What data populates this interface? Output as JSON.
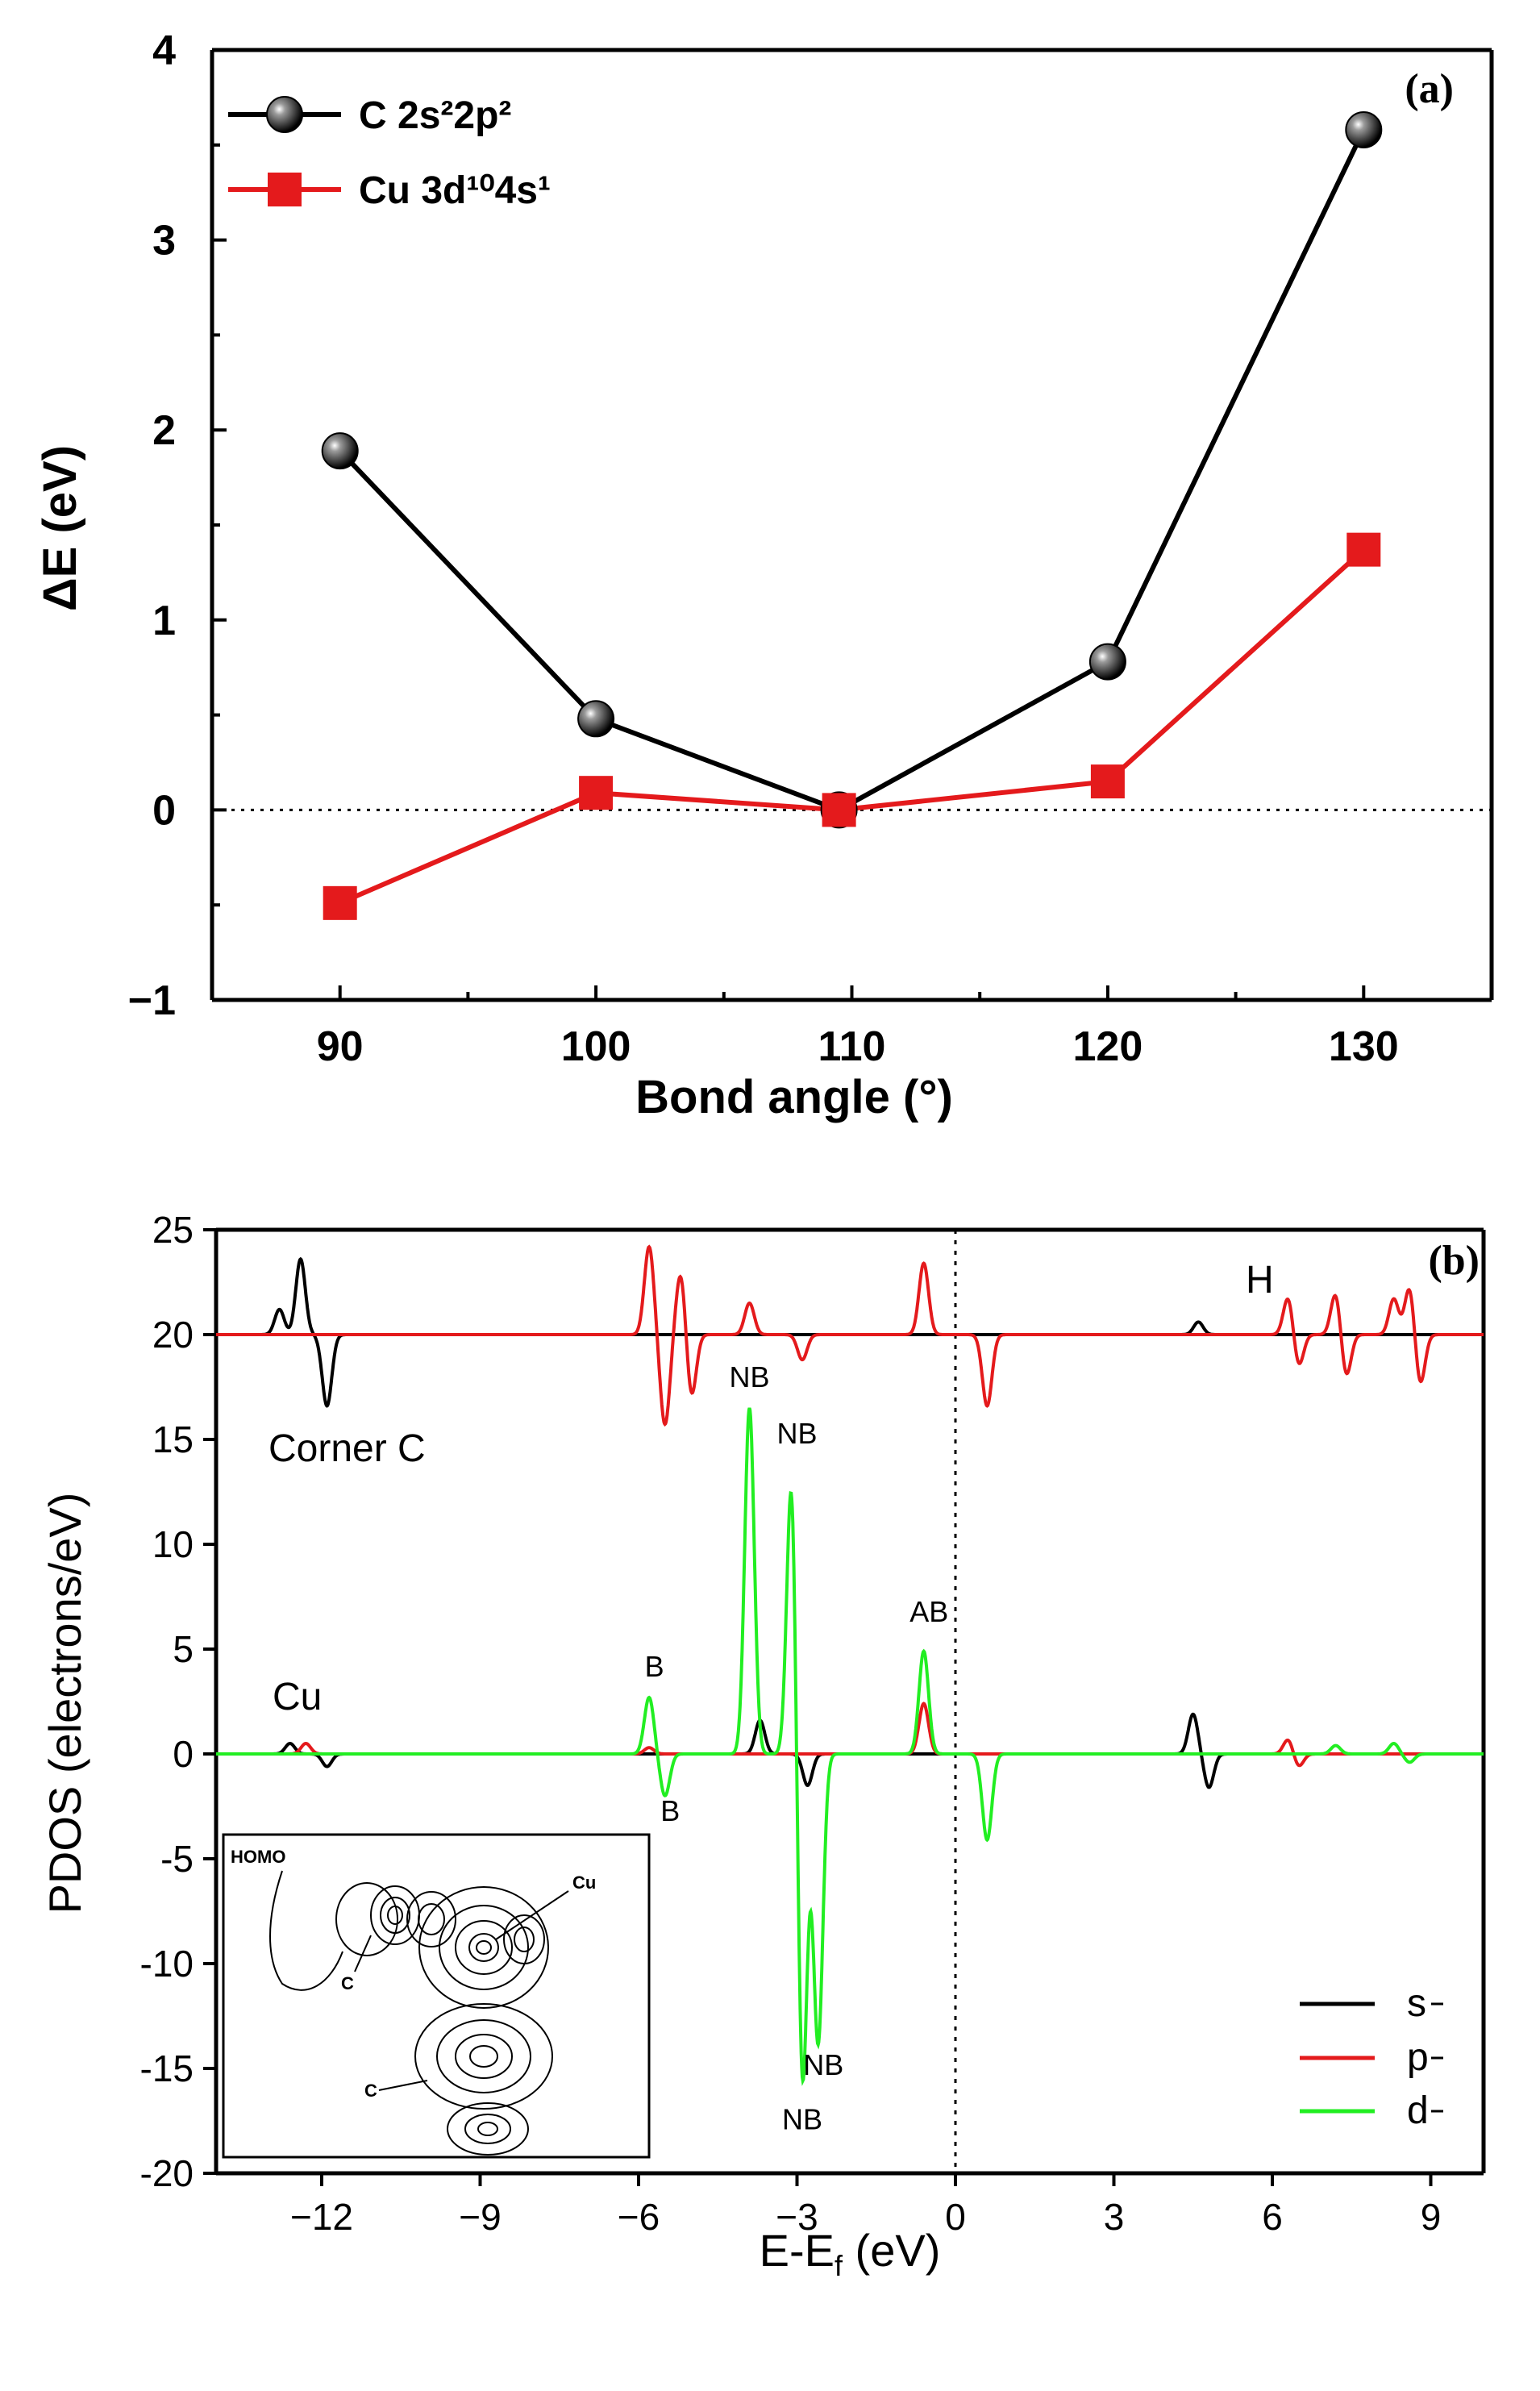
{
  "chart_data": [
    {
      "panel": "(a)",
      "type": "line",
      "xlabel": "Bond angle (°)",
      "ylabel": "ΔE (eV)",
      "xlim": [
        85,
        135
      ],
      "ylim": [
        -1,
        4
      ],
      "xticks": [
        90,
        100,
        110,
        120,
        130
      ],
      "xtick_labels": [
        "90",
        "100",
        "110",
        "120",
        "130"
      ],
      "yticks": [
        -1,
        0,
        1,
        2,
        3,
        4
      ],
      "ytick_labels": [
        "−1",
        "0",
        "1",
        "2",
        "3",
        "4"
      ],
      "reference_line": {
        "y": 0,
        "style": "dotted"
      },
      "legend_position": "top-left",
      "series": [
        {
          "name": "C",
          "config": "2s²2p²",
          "color": "#000000",
          "marker": "sphere",
          "x": [
            90,
            100,
            109.5,
            120,
            130
          ],
          "values": [
            1.89,
            0.48,
            0.0,
            0.78,
            3.58
          ]
        },
        {
          "name": "Cu",
          "config": "3d¹⁰4s¹",
          "color": "#e41a1c",
          "marker": "square",
          "x": [
            90,
            100,
            109.5,
            120,
            130
          ],
          "values": [
            -0.49,
            0.09,
            0.0,
            0.15,
            1.37
          ]
        }
      ]
    },
    {
      "panel": "(b)",
      "type": "line",
      "xlabel": "E-E",
      "xlabel_sub": "f",
      "xlabel_unit": " (eV)",
      "ylabel": "PDOS (electrons/eV)",
      "xlim": [
        -14,
        10
      ],
      "ylim": [
        -20,
        25
      ],
      "xticks": [
        -12,
        -9,
        -6,
        -3,
        0,
        3,
        6,
        9
      ],
      "xtick_labels": [
        "−12",
        "−9",
        "−6",
        "−3",
        "0",
        "3",
        "6",
        "9"
      ],
      "yticks": [
        -20,
        -15,
        -10,
        -5,
        0,
        5,
        10,
        15,
        20,
        25
      ],
      "ytick_labels": [
        "-20",
        "-15",
        "-10",
        "-5",
        "0",
        "5",
        "10",
        "15",
        "20",
        "25"
      ],
      "fermi_line": {
        "x": 0,
        "style": "dotted"
      },
      "legend_position": "bottom-right",
      "groups": [
        {
          "name": "Corner C",
          "offset": 20
        },
        {
          "name": "Cu",
          "offset": 0
        }
      ],
      "series": [
        {
          "name": "s",
          "color": "#000000"
        },
        {
          "name": "p",
          "color": "#e41a1c"
        },
        {
          "name": "d",
          "color": "#22ee22"
        }
      ],
      "peaks": [
        {
          "group": "Corner C",
          "orbital": "s",
          "center": -12.8,
          "amp": 1.2
        },
        {
          "group": "Corner C",
          "orbital": "s",
          "center": -12.4,
          "amp": 3.6
        },
        {
          "group": "Corner C",
          "orbital": "s",
          "center": -11.9,
          "amp": -3.4
        },
        {
          "group": "Corner C",
          "orbital": "p",
          "center": -5.8,
          "amp": 4.2
        },
        {
          "group": "Corner C",
          "orbital": "p",
          "center": -5.5,
          "amp": -4.3
        },
        {
          "group": "Corner C",
          "orbital": "p",
          "center": -5.2,
          "amp": 3.0
        },
        {
          "group": "Corner C",
          "orbital": "p",
          "center": -5.0,
          "amp": -3.0
        },
        {
          "group": "Corner C",
          "orbital": "p",
          "center": -3.9,
          "amp": 1.5
        },
        {
          "group": "Corner C",
          "orbital": "p",
          "center": -2.9,
          "amp": -1.2
        },
        {
          "group": "Corner C",
          "orbital": "p",
          "center": -0.6,
          "amp": 3.4
        },
        {
          "group": "Corner C",
          "orbital": "p",
          "center": 0.6,
          "amp": -3.4
        },
        {
          "group": "Corner C",
          "orbital": "s",
          "center": 4.6,
          "amp": 0.6
        },
        {
          "group": "Corner C",
          "orbital": "p",
          "center": 6.3,
          "amp": 1.8
        },
        {
          "group": "Corner C",
          "orbital": "p",
          "center": 6.5,
          "amp": -1.5
        },
        {
          "group": "Corner C",
          "orbital": "p",
          "center": 7.2,
          "amp": 2.0
        },
        {
          "group": "Corner C",
          "orbital": "p",
          "center": 7.4,
          "amp": -2.0
        },
        {
          "group": "Corner C",
          "orbital": "p",
          "center": 8.3,
          "amp": 1.7
        },
        {
          "group": "Corner C",
          "orbital": "p",
          "center": 8.6,
          "amp": 2.3
        },
        {
          "group": "Corner C",
          "orbital": "p",
          "center": 8.8,
          "amp": -2.4
        },
        {
          "group": "Cu",
          "orbital": "s",
          "center": -12.6,
          "amp": 0.5
        },
        {
          "group": "Cu",
          "orbital": "p",
          "center": -12.3,
          "amp": 0.5
        },
        {
          "group": "Cu",
          "orbital": "s",
          "center": -11.9,
          "amp": -0.6
        },
        {
          "group": "Cu",
          "orbital": "d",
          "center": -5.8,
          "amp": 2.7
        },
        {
          "group": "Cu",
          "orbital": "d",
          "center": -5.5,
          "amp": -2.0
        },
        {
          "group": "Cu",
          "orbital": "p",
          "center": -5.8,
          "amp": 0.3
        },
        {
          "group": "Cu",
          "orbital": "d",
          "center": -3.9,
          "amp": 16.5
        },
        {
          "group": "Cu",
          "orbital": "s",
          "center": -3.7,
          "amp": 1.6
        },
        {
          "group": "Cu",
          "orbital": "d",
          "center": -3.1,
          "amp": 13.6
        },
        {
          "group": "Cu",
          "orbital": "d",
          "center": -2.9,
          "amp": -16.5
        },
        {
          "group": "Cu",
          "orbital": "d",
          "center": -2.6,
          "amp": -13.8
        },
        {
          "group": "Cu",
          "orbital": "s",
          "center": -2.8,
          "amp": -1.5
        },
        {
          "group": "Cu",
          "orbital": "d",
          "center": -0.6,
          "amp": 4.9
        },
        {
          "group": "Cu",
          "orbital": "p",
          "center": -0.6,
          "amp": 2.4
        },
        {
          "group": "Cu",
          "orbital": "d",
          "center": 0.6,
          "amp": -4.1
        },
        {
          "group": "Cu",
          "orbital": "s",
          "center": 4.5,
          "amp": 1.9
        },
        {
          "group": "Cu",
          "orbital": "s",
          "center": 4.8,
          "amp": -1.6
        },
        {
          "group": "Cu",
          "orbital": "p",
          "center": 6.3,
          "amp": 0.7
        },
        {
          "group": "Cu",
          "orbital": "p",
          "center": 6.5,
          "amp": -0.6
        },
        {
          "group": "Cu",
          "orbital": "d",
          "center": 7.2,
          "amp": 0.4
        },
        {
          "group": "Cu",
          "orbital": "d",
          "center": 8.3,
          "amp": 0.5
        },
        {
          "group": "Cu",
          "orbital": "d",
          "center": 8.6,
          "amp": -0.4
        }
      ],
      "annotations": [
        {
          "text": "NB",
          "x": -3.9,
          "y": 17.5
        },
        {
          "text": "NB",
          "x": -3.0,
          "y": 14.8
        },
        {
          "text": "AB",
          "x": -0.5,
          "y": 6.3
        },
        {
          "text": "B",
          "x": -5.7,
          "y": 3.7
        },
        {
          "text": "B",
          "x": -5.4,
          "y": -3.2
        },
        {
          "text": "NB",
          "x": -2.5,
          "y": -15.3
        },
        {
          "text": "NB",
          "x": -2.9,
          "y": -17.9
        }
      ],
      "panel_labels": {
        "corner_c": "Corner C",
        "cu": "Cu",
        "h": "H"
      },
      "inset": {
        "title": "HOMO",
        "labels": [
          "Cu",
          "C",
          "C"
        ]
      }
    }
  ]
}
